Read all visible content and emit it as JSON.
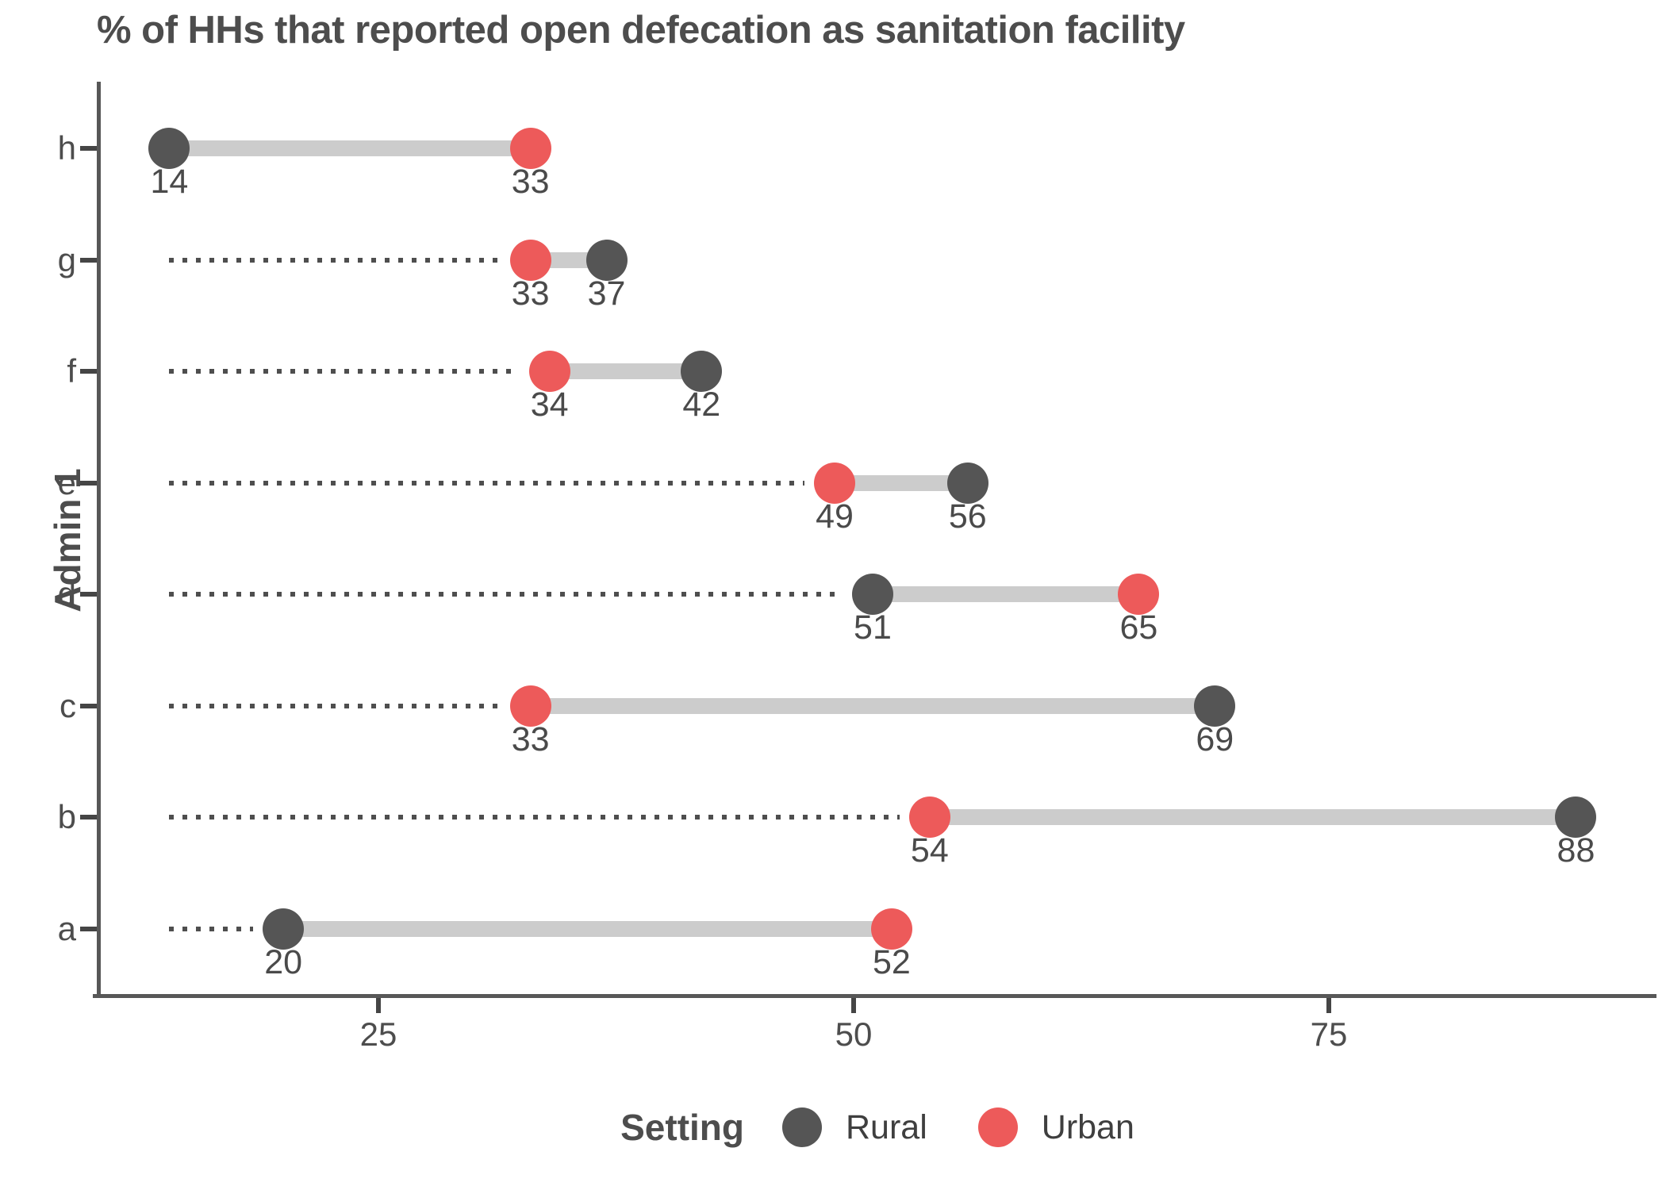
{
  "title": "% of HHs that reported open defecation as sanitation facility",
  "y_axis_label": "Admin 1",
  "x_axis": {
    "tick_labels": [
      "25",
      "50",
      "75"
    ],
    "tick_values": [
      25,
      50,
      75
    ]
  },
  "legend": {
    "title": "Setting",
    "items": [
      {
        "label": "Rural",
        "color": "#555555"
      },
      {
        "label": "Urban",
        "color": "#ED5A5A"
      }
    ]
  },
  "colors": {
    "rural_dot": "#555555",
    "urban_dot": "#ED5A5A",
    "connector_band": "#cccccc",
    "leader_dotted": "#4e4e4e",
    "axis": "#575757",
    "text": "#4d4d4d",
    "background": "#ffffff"
  },
  "chart_data": {
    "type": "dumbbell",
    "title": "% of HHs that reported open defecation as sanitation facility",
    "xlabel": "",
    "ylabel": "Admin 1",
    "categories": [
      "h",
      "g",
      "f",
      "e",
      "d",
      "c",
      "b",
      "a"
    ],
    "series": [
      {
        "name": "Rural",
        "color": "#555555",
        "values": [
          14,
          37,
          42,
          56,
          51,
          69,
          88,
          20
        ]
      },
      {
        "name": "Urban",
        "color": "#ED5A5A",
        "values": [
          33,
          33,
          34,
          49,
          65,
          33,
          54,
          52
        ]
      }
    ],
    "value_labels": true,
    "xlim": [
      10,
      93
    ],
    "x_ticks": [
      25,
      50,
      75
    ],
    "grid": false,
    "legend_position": "bottom",
    "leader_lines": "dotted horizontal line from axis (at x=14) to the leftmost point of each row",
    "orientation": "horizontal"
  }
}
